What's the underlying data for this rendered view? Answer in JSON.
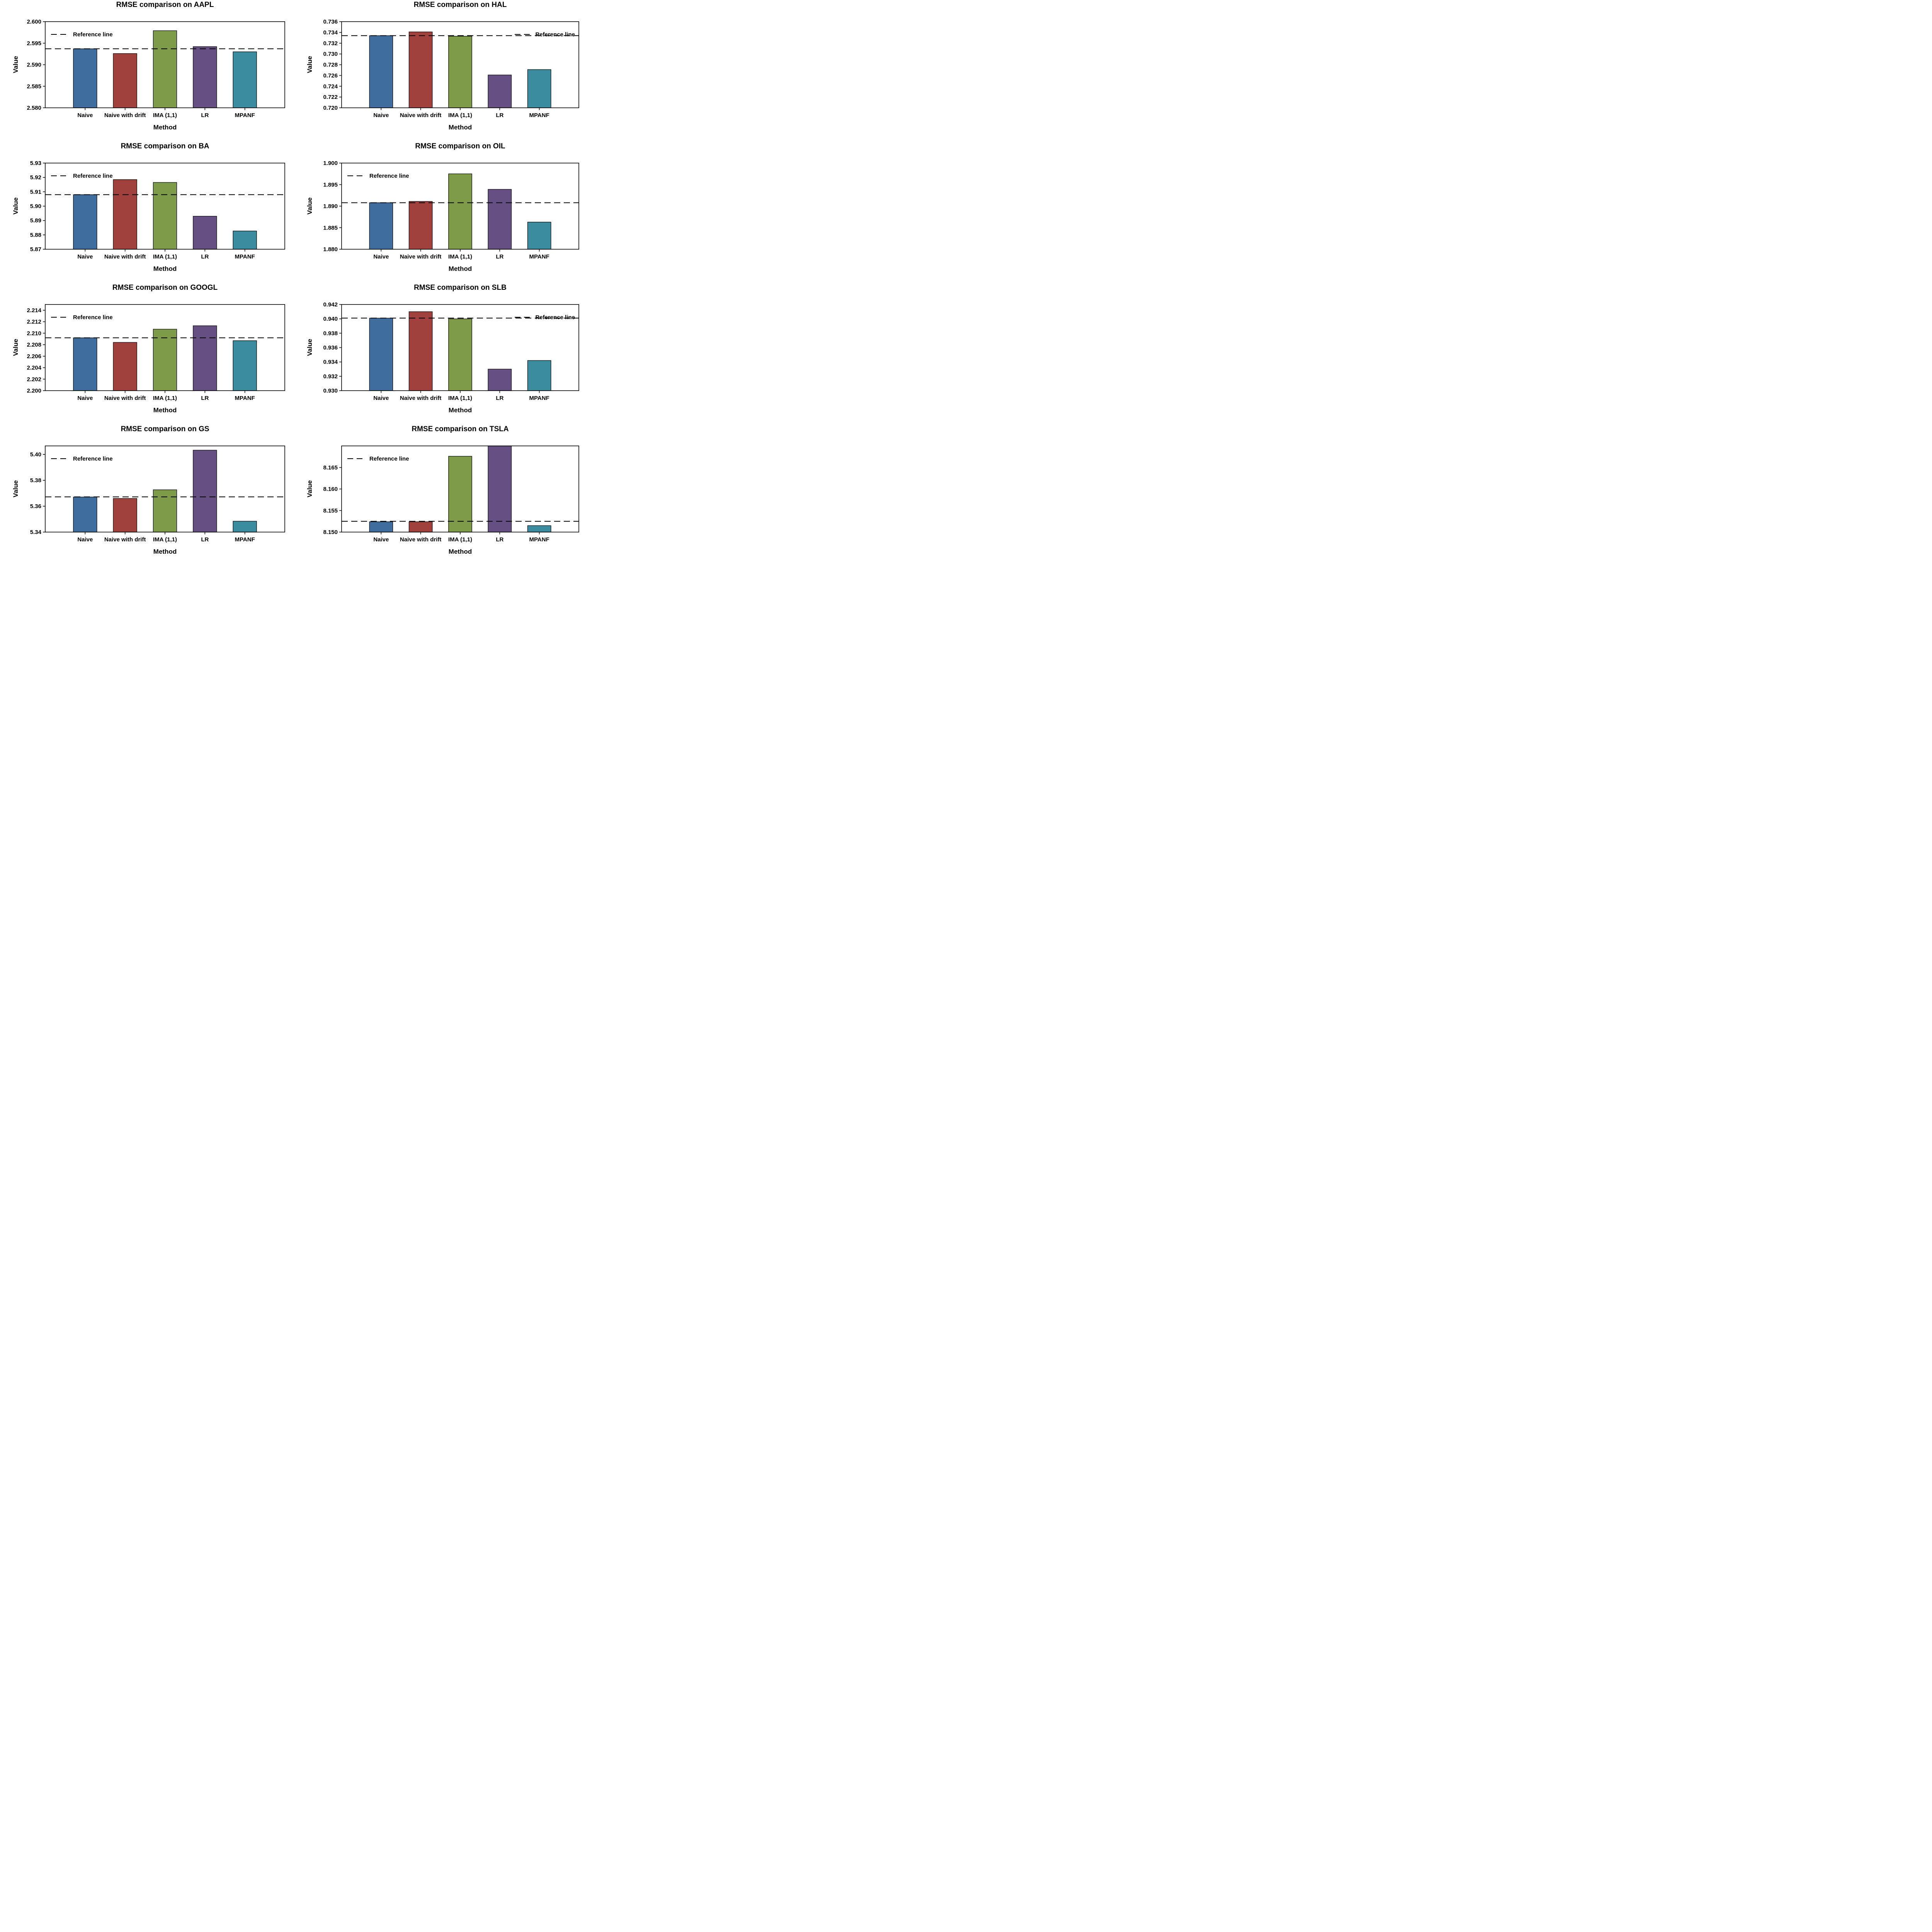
{
  "figure": {
    "legend_label": "Reference line",
    "xlabel": "Method",
    "ylabel": "Value",
    "categories": [
      "Naive",
      "Naive with drift",
      "IMA (1,1)",
      "LR",
      "MPANF"
    ],
    "colors": {
      "bars": [
        "#3f6d9d",
        "#a0413e",
        "#7e9b49",
        "#665083",
        "#3c8ca0"
      ],
      "bar_edge": "#000000",
      "reference_line": "#000000",
      "axis": "#000000",
      "text": "#000000",
      "background": "#ffffff"
    }
  },
  "chart_data": [
    {
      "type": "bar",
      "title": "RMSE comparison on AAPL",
      "xlabel": "Method",
      "ylabel": "Value",
      "categories": [
        "Naive",
        "Naive with drift",
        "IMA (1,1)",
        "LR",
        "MPANF"
      ],
      "values": [
        2.5937,
        2.5926,
        2.5979,
        2.5942,
        2.593
      ],
      "reference_line": 2.5937,
      "ylim": [
        2.58,
        2.6
      ],
      "yticks": [
        "2.600",
        "2.595",
        "2.590",
        "2.585",
        "2.580"
      ],
      "legend_position": "upper-left",
      "grid": false
    },
    {
      "type": "bar",
      "title": "RMSE comparison on HAL",
      "xlabel": "Method",
      "ylabel": "Value",
      "categories": [
        "Naive",
        "Naive with drift",
        "IMA (1,1)",
        "LR",
        "MPANF"
      ],
      "values": [
        0.7334,
        0.7341,
        0.7333,
        0.7261,
        0.7271
      ],
      "reference_line": 0.7334,
      "ylim": [
        0.72,
        0.736
      ],
      "yticks": [
        "0.736",
        "0.734",
        "0.732",
        "0.730",
        "0.728",
        "0.726",
        "0.724",
        "0.722",
        "0.720"
      ],
      "legend_position": "upper-right",
      "grid": false
    },
    {
      "type": "bar",
      "title": "RMSE comparison on BA",
      "xlabel": "Method",
      "ylabel": "Value",
      "categories": [
        "Naive",
        "Naive with drift",
        "IMA (1,1)",
        "LR",
        "MPANF"
      ],
      "values": [
        5.908,
        5.9185,
        5.9165,
        5.893,
        5.8827
      ],
      "reference_line": 5.908,
      "ylim": [
        5.87,
        5.93
      ],
      "yticks": [
        "5.93",
        "5.92",
        "5.91",
        "5.90",
        "5.89",
        "5.88",
        "5.87"
      ],
      "legend_position": "upper-left",
      "grid": false
    },
    {
      "type": "bar",
      "title": "RMSE comparison on OIL",
      "xlabel": "Method",
      "ylabel": "Value",
      "categories": [
        "Naive",
        "Naive with drift",
        "IMA (1,1)",
        "LR",
        "MPANF"
      ],
      "values": [
        1.8908,
        1.8911,
        1.8975,
        1.8939,
        1.8863
      ],
      "reference_line": 1.8908,
      "ylim": [
        1.88,
        1.9
      ],
      "yticks": [
        "1.900",
        "1.895",
        "1.890",
        "1.885",
        "1.880"
      ],
      "legend_position": "upper-left",
      "grid": false
    },
    {
      "type": "bar",
      "title": "RMSE comparison on GOOGL",
      "xlabel": "Method",
      "ylabel": "Value",
      "categories": [
        "Naive",
        "Naive with drift",
        "IMA (1,1)",
        "LR",
        "MPANF"
      ],
      "values": [
        2.2092,
        2.2084,
        2.2107,
        2.2113,
        2.2087
      ],
      "reference_line": 2.2092,
      "ylim": [
        2.2,
        2.215
      ],
      "yticks": [
        "2.214",
        "2.212",
        "2.210",
        "2.208",
        "2.206",
        "2.204",
        "2.202",
        "2.200"
      ],
      "legend_position": "upper-left",
      "grid": false
    },
    {
      "type": "bar",
      "title": "RMSE comparison on SLB",
      "xlabel": "Method",
      "ylabel": "Value",
      "categories": [
        "Naive",
        "Naive with drift",
        "IMA (1,1)",
        "LR",
        "MPANF"
      ],
      "values": [
        0.9401,
        0.941,
        0.94,
        0.933,
        0.9342
      ],
      "reference_line": 0.9401,
      "ylim": [
        0.93,
        0.942
      ],
      "yticks": [
        "0.942",
        "0.940",
        "0.938",
        "0.936",
        "0.934",
        "0.932",
        "0.930"
      ],
      "legend_position": "upper-right",
      "grid": false
    },
    {
      "type": "bar",
      "title": "RMSE comparison on GS",
      "xlabel": "Method",
      "ylabel": "Value",
      "categories": [
        "Naive",
        "Naive with drift",
        "IMA (1,1)",
        "LR",
        "MPANF"
      ],
      "values": [
        5.3671,
        5.366,
        5.3727,
        5.4033,
        5.3484
      ],
      "reference_line": 5.3672,
      "ylim": [
        5.34,
        5.4066
      ],
      "yticks": [
        "5.40",
        "5.38",
        "5.36",
        "5.34"
      ],
      "legend_position": "upper-left",
      "grid": false
    },
    {
      "type": "bar",
      "title": "RMSE comparison on TSLA",
      "xlabel": "Method",
      "ylabel": "Value",
      "categories": [
        "Naive",
        "Naive with drift",
        "IMA (1,1)",
        "LR",
        "MPANF"
      ],
      "values": [
        8.1524,
        8.1524,
        8.1676,
        8.17,
        8.1515
      ],
      "lr_bar_clipped_at_top": true,
      "reference_line": 8.1525,
      "ylim": [
        8.15,
        8.17
      ],
      "yticks": [
        "8.165",
        "8.160",
        "8.155",
        "8.150"
      ],
      "legend_position": "upper-left",
      "grid": false
    }
  ]
}
